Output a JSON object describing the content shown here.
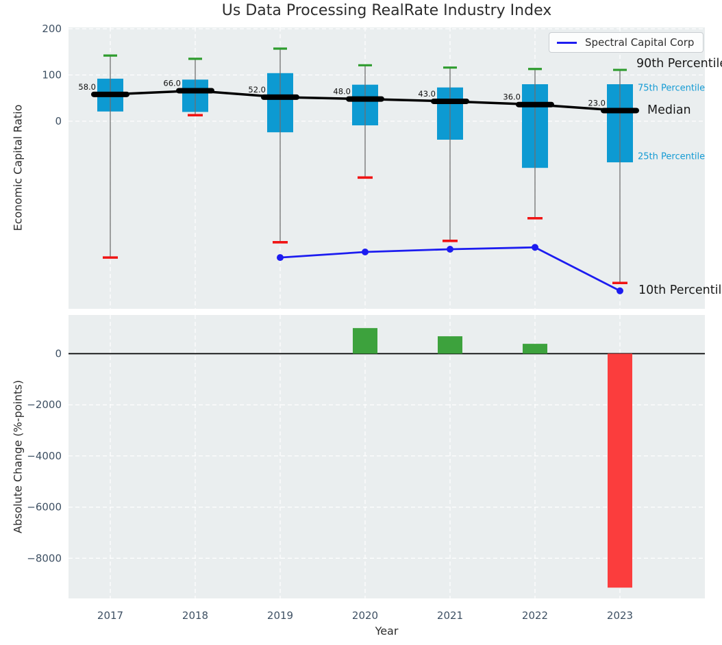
{
  "title": "Us Data Processing RealRate Industry Index",
  "legend": {
    "label": "Spectral Capital Corp"
  },
  "annotations": {
    "p90": "90th Percentile",
    "p75": "75th Percentile",
    "median": "Median",
    "p25": "25th Percentile",
    "p10": "10th Percentile"
  },
  "colors": {
    "axes_background": "#eaeeef",
    "grid": "#ffffff",
    "box_fill": "#0d9ad2",
    "whisker": "#6f6f6f",
    "cap_high": "#2e9c2e",
    "cap_low": "#f01414",
    "median_line": "#000000",
    "company_line": "#1c1cf0",
    "bar_positive": "#3da23d",
    "bar_negative": "#fb3d3d",
    "tick_label": "#3e5063",
    "median_label": "#111111",
    "annotation_accent": "#149bd4"
  },
  "chart_data": [
    {
      "type": "boxplot",
      "title": "Us Data Processing RealRate Industry Index",
      "xlabel": "Year",
      "ylabel": "Economic Capital Ratio",
      "categories": [
        "2017",
        "2018",
        "2019",
        "2020",
        "2021",
        "2022",
        "2023"
      ],
      "yticks": [
        {
          "value": 200,
          "label": "200"
        },
        {
          "value": 100,
          "label": "100"
        },
        {
          "value": 0,
          "label": "0"
        }
      ],
      "ylim": [
        -406,
        203
      ],
      "grid": true,
      "legend_position": "upper right",
      "percentiles": {
        "p90": [
          142,
          135,
          157,
          121,
          116,
          113,
          111
        ],
        "p75": [
          92,
          90,
          104,
          79,
          73,
          80,
          80
        ],
        "median": [
          58,
          66,
          52,
          48,
          43,
          36,
          23
        ],
        "p25": [
          21,
          20,
          -24,
          -9,
          -40,
          -101,
          -89
        ],
        "p10": [
          -295,
          13,
          -262,
          -122,
          -259,
          -210,
          -350
        ]
      },
      "median_labels": [
        "58.0",
        "66.0",
        "52.0",
        "48.0",
        "43.0",
        "36.0",
        "23.0"
      ],
      "series": [
        {
          "name": "Spectral Capital Corp",
          "values": [
            null,
            null,
            -295,
            -283,
            -277,
            -273,
            -367
          ]
        }
      ]
    },
    {
      "type": "bar",
      "xlabel": "Year",
      "ylabel": "Absolute Change (%-points)",
      "categories": [
        "2017",
        "2018",
        "2019",
        "2020",
        "2021",
        "2022",
        "2023"
      ],
      "values": [
        null,
        null,
        null,
        1000,
        680,
        385,
        -9150
      ],
      "yticks": [
        {
          "value": 0,
          "label": "0"
        },
        {
          "value": -2000,
          "label": "−2000"
        },
        {
          "value": -4000,
          "label": "−4000"
        },
        {
          "value": -6000,
          "label": "−6000"
        },
        {
          "value": -8000,
          "label": "−8000"
        }
      ],
      "ylim": [
        -9570,
        1513
      ],
      "grid": true
    }
  ]
}
